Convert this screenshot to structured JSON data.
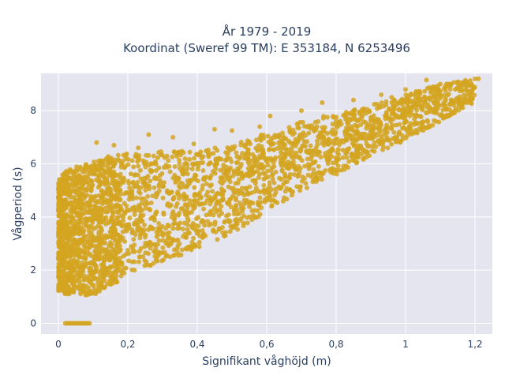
{
  "chart_data": {
    "type": "scatter",
    "title_line1": "År 1979 - 2019",
    "title_line2": "Koordinat (Sweref 99 TM): E 353184, N 6253496",
    "xlabel": "Signifikant våghöjd (m)",
    "ylabel": "Vågperiod (s)",
    "xlim": [
      -0.05,
      1.25
    ],
    "ylim": [
      -0.4,
      9.4
    ],
    "xticks": [
      0,
      0.2,
      0.4,
      0.6,
      0.8,
      1,
      1.2
    ],
    "xtick_labels": [
      "0",
      "0,2",
      "0,4",
      "0,6",
      "0,8",
      "1",
      "1,2"
    ],
    "yticks": [
      0,
      2,
      4,
      6,
      8
    ],
    "ytick_labels": [
      "0",
      "2",
      "4",
      "6",
      "8"
    ],
    "marker_color": "#d4a520",
    "background_color": "#e5e5f0",
    "grid": true,
    "point_cloud_envelope": {
      "x": [
        0.0,
        0.02,
        0.05,
        0.1,
        0.15,
        0.2,
        0.3,
        0.4,
        0.5,
        0.6,
        0.7,
        0.8,
        0.9,
        1.0,
        1.1,
        1.2
      ],
      "lower_y": [
        1.2,
        1.1,
        1.05,
        1.05,
        1.4,
        1.8,
        2.3,
        2.8,
        3.4,
        4.2,
        5.0,
        5.6,
        6.3,
        6.9,
        7.6,
        8.3
      ],
      "upper_y": [
        5.4,
        5.7,
        5.9,
        6.1,
        6.3,
        6.4,
        6.5,
        6.5,
        6.7,
        7.2,
        7.6,
        7.9,
        8.2,
        8.6,
        9.0,
        9.2
      ]
    },
    "zero_period_points": {
      "y": 0,
      "x": [
        0.02,
        0.025,
        0.03,
        0.035,
        0.04,
        0.045,
        0.05,
        0.055,
        0.06,
        0.065,
        0.07,
        0.075,
        0.08,
        0.085,
        0.09
      ]
    },
    "outliers": [
      {
        "x": 0.11,
        "y": 6.8
      },
      {
        "x": 0.16,
        "y": 6.7
      },
      {
        "x": 0.23,
        "y": 6.6
      },
      {
        "x": 0.26,
        "y": 7.1
      },
      {
        "x": 0.33,
        "y": 7.0
      },
      {
        "x": 0.39,
        "y": 6.75
      },
      {
        "x": 0.58,
        "y": 7.4
      },
      {
        "x": 0.61,
        "y": 7.8
      },
      {
        "x": 0.7,
        "y": 8.0
      },
      {
        "x": 0.76,
        "y": 8.3
      },
      {
        "x": 0.85,
        "y": 8.4
      },
      {
        "x": 0.93,
        "y": 8.6
      },
      {
        "x": 0.96,
        "y": 8.5
      },
      {
        "x": 1.0,
        "y": 8.8
      },
      {
        "x": 1.04,
        "y": 8.7
      },
      {
        "x": 1.08,
        "y": 8.9
      },
      {
        "x": 1.1,
        "y": 9.0
      },
      {
        "x": 1.13,
        "y": 8.95
      },
      {
        "x": 1.16,
        "y": 9.05
      },
      {
        "x": 1.19,
        "y": 9.0
      },
      {
        "x": 1.21,
        "y": 9.2
      },
      {
        "x": 1.06,
        "y": 9.15
      },
      {
        "x": 0.45,
        "y": 7.3
      },
      {
        "x": 0.5,
        "y": 7.25
      }
    ]
  }
}
